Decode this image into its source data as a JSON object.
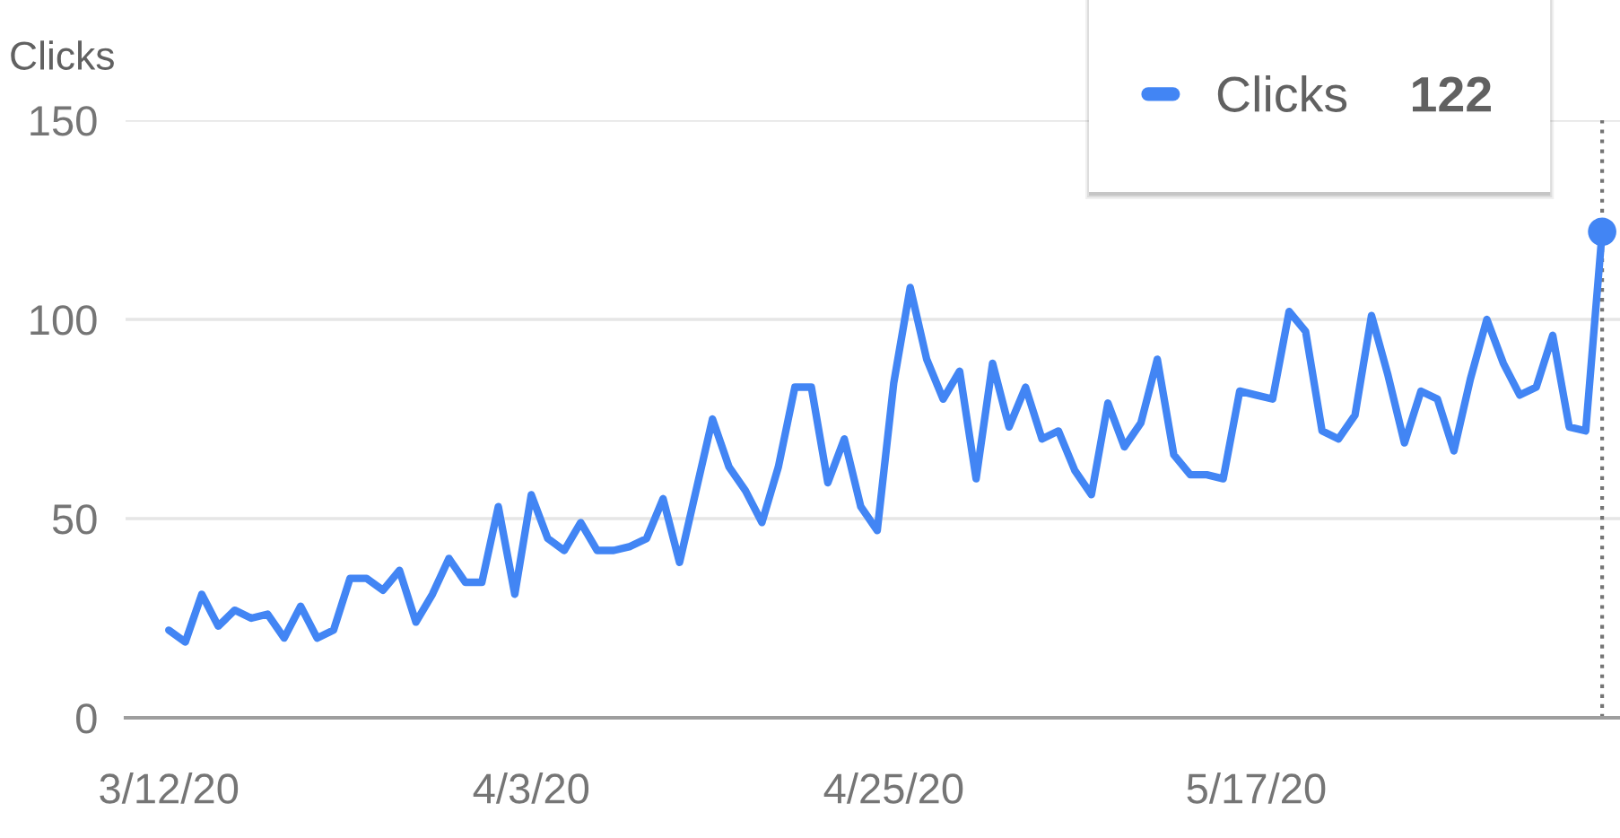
{
  "chart_data": {
    "type": "line",
    "ylabel": "Clicks",
    "x": [
      "2020-03-12",
      "2020-03-13",
      "2020-03-14",
      "2020-03-15",
      "2020-03-16",
      "2020-03-17",
      "2020-03-18",
      "2020-03-19",
      "2020-03-20",
      "2020-03-21",
      "2020-03-22",
      "2020-03-23",
      "2020-03-24",
      "2020-03-25",
      "2020-03-26",
      "2020-03-27",
      "2020-03-28",
      "2020-03-29",
      "2020-03-30",
      "2020-03-31",
      "2020-04-01",
      "2020-04-02",
      "2020-04-03",
      "2020-04-04",
      "2020-04-05",
      "2020-04-06",
      "2020-04-07",
      "2020-04-08",
      "2020-04-09",
      "2020-04-10",
      "2020-04-11",
      "2020-04-12",
      "2020-04-13",
      "2020-04-14",
      "2020-04-15",
      "2020-04-16",
      "2020-04-17",
      "2020-04-18",
      "2020-04-19",
      "2020-04-20",
      "2020-04-21",
      "2020-04-22",
      "2020-04-23",
      "2020-04-24",
      "2020-04-25",
      "2020-04-26",
      "2020-04-27",
      "2020-04-28",
      "2020-04-29",
      "2020-04-30",
      "2020-05-01",
      "2020-05-02",
      "2020-05-03",
      "2020-05-04",
      "2020-05-05",
      "2020-05-06",
      "2020-05-07",
      "2020-05-08",
      "2020-05-09",
      "2020-05-10",
      "2020-05-11",
      "2020-05-12",
      "2020-05-13",
      "2020-05-14",
      "2020-05-15",
      "2020-05-16",
      "2020-05-17",
      "2020-05-18",
      "2020-05-19",
      "2020-05-20",
      "2020-05-21",
      "2020-05-22",
      "2020-05-23",
      "2020-05-24",
      "2020-05-25",
      "2020-05-26",
      "2020-05-27",
      "2020-05-28",
      "2020-05-29",
      "2020-05-30",
      "2020-05-31",
      "2020-06-01",
      "2020-06-02",
      "2020-06-03",
      "2020-06-04",
      "2020-06-05",
      "2020-06-06",
      "2020-06-07"
    ],
    "series": [
      {
        "name": "Clicks",
        "color": "#4285f4",
        "values": [
          22,
          19,
          31,
          23,
          27,
          25,
          26,
          20,
          28,
          20,
          22,
          35,
          35,
          32,
          37,
          24,
          31,
          40,
          34,
          34,
          53,
          31,
          56,
          45,
          42,
          49,
          42,
          42,
          43,
          45,
          55,
          39,
          57,
          75,
          63,
          57,
          49,
          63,
          83,
          83,
          59,
          70,
          53,
          47,
          84,
          108,
          90,
          80,
          87,
          60,
          89,
          73,
          83,
          70,
          72,
          62,
          56,
          79,
          68,
          74,
          90,
          66,
          61,
          61,
          60,
          82,
          81,
          80,
          102,
          97,
          72,
          70,
          76,
          101,
          86,
          69,
          82,
          80,
          67,
          85,
          100,
          89,
          81,
          83,
          96,
          73,
          72,
          122
        ]
      },
      {
        "type": "scatter",
        "color": "#4285f4",
        "x": [
          "2020-06-07"
        ],
        "values": [
          122
        ]
      }
    ],
    "xlim": [
      "2020-03-09T09:00",
      "2020-06-08T02:00"
    ],
    "xticks": [
      {
        "value": "2020-03-12",
        "label": "3/12/20"
      },
      {
        "value": "2020-04-03",
        "label": "4/3/20"
      },
      {
        "value": "2020-04-25",
        "label": "4/25/20"
      },
      {
        "value": "2020-05-17",
        "label": "5/17/20"
      }
    ],
    "ylim": [
      0,
      150
    ],
    "yticks": [
      0,
      50,
      100,
      150
    ],
    "ref_lines": [
      {
        "axis": "x",
        "value": "2020-06-07",
        "color": "#757575",
        "line_style": "dotted"
      }
    ],
    "annotations": [
      "122"
    ],
    "grid": "y",
    "legend": "top right",
    "line_style": "solid"
  }
}
